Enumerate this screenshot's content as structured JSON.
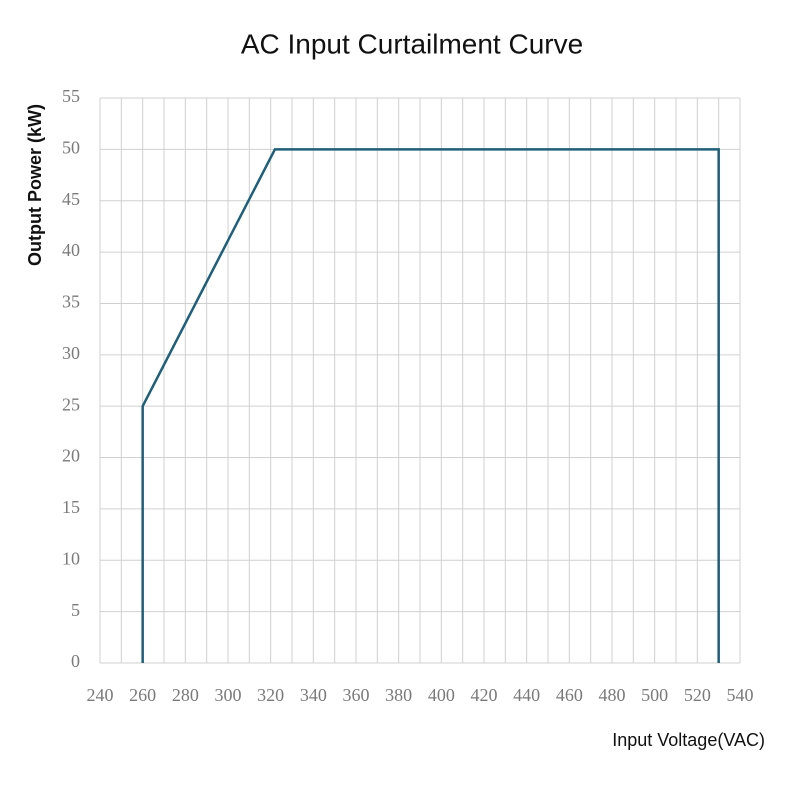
{
  "chart_data": {
    "type": "line",
    "title": "AC Input Curtailment Curve",
    "x_label": "Input Voltage(VAC)",
    "y_label": "Output Power (kW)",
    "x": [
      260,
      260,
      322,
      530,
      530
    ],
    "series": [
      {
        "color": "#1f5f7a",
        "values": [
          0,
          25,
          50,
          50,
          0
        ]
      }
    ],
    "xlim": [
      240,
      540
    ],
    "xticks": [
      240,
      260,
      280,
      300,
      320,
      340,
      360,
      380,
      400,
      420,
      440,
      460,
      480,
      500,
      520,
      540
    ],
    "xminorticks": [
      250,
      270,
      290,
      310,
      330,
      350,
      370,
      390,
      410,
      430,
      450,
      470,
      490,
      510,
      530
    ],
    "ylim": [
      0,
      55
    ],
    "yticks": [
      0,
      5,
      10,
      15,
      20,
      25,
      30,
      35,
      40,
      45,
      50,
      55
    ],
    "grid": true
  }
}
